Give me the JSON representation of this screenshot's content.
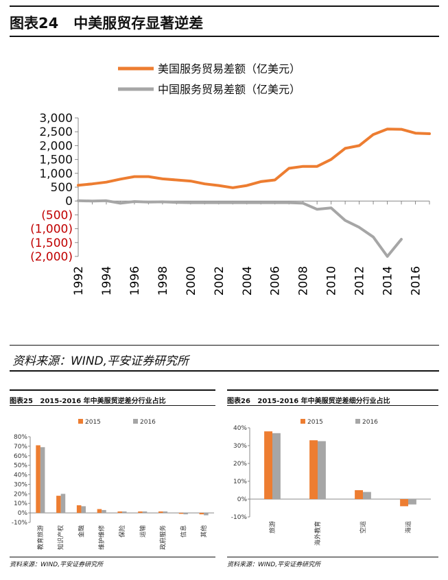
{
  "main": {
    "title_prefix": "图表24",
    "title": "中美服贸存显著逆差",
    "source": "资料来源：WIND,平安证券研究所"
  },
  "fig25": {
    "title_prefix": "图表25",
    "title": "2015-2016 年中美服贸逆差分行业占比",
    "source": "资料来源：WIND,平安证券研究所"
  },
  "fig26": {
    "title_prefix": "图表26",
    "title": "2015-2016 年中美服贸逆差细分行业占比",
    "source": "资料来源：WIND,平安证券研究所"
  },
  "colors": {
    "orange": "#ED7D31",
    "gray": "#A6A6A6",
    "negative": "#C00000"
  },
  "chart_data": [
    {
      "type": "line",
      "legend_position": "top",
      "x": [
        1992,
        1993,
        1994,
        1995,
        1996,
        1997,
        1998,
        1999,
        2000,
        2001,
        2002,
        2003,
        2004,
        2005,
        2006,
        2007,
        2008,
        2009,
        2010,
        2011,
        2012,
        2013,
        2014,
        2015,
        2016,
        2017
      ],
      "series": [
        {
          "name": "美国服务贸易差额（亿美元）",
          "color": "#ED7D31",
          "values": [
            570,
            620,
            680,
            790,
            880,
            880,
            800,
            760,
            720,
            620,
            560,
            480,
            560,
            700,
            760,
            1180,
            1250,
            1250,
            1500,
            1900,
            2000,
            2400,
            2600,
            2590,
            2450,
            2430
          ]
        },
        {
          "name": "中国服务贸易差额（亿美元）",
          "color": "#A6A6A6",
          "values": [
            10,
            0,
            10,
            -80,
            -20,
            -40,
            -30,
            -50,
            -60,
            -60,
            -60,
            -60,
            -60,
            -60,
            -60,
            -60,
            -80,
            -300,
            -250,
            -700,
            -950,
            -1300,
            -2000,
            -1380,
            null,
            null
          ]
        }
      ],
      "ylim": [
        -2000,
        3000
      ],
      "yticks": [
        -2000,
        -1500,
        -1000,
        -500,
        0,
        500,
        1000,
        1500,
        2000,
        2500,
        3000
      ],
      "ytick_labels": [
        "(2,000)",
        "(1,500)",
        "(1,000)",
        "(500)",
        "0",
        "500",
        "1,000",
        "1,500",
        "2,000",
        "2,500",
        "3,000"
      ],
      "xtick_labels": [
        "1992",
        "1994",
        "1996",
        "1998",
        "2000",
        "2002",
        "2004",
        "2006",
        "2008",
        "2010",
        "2012",
        "2014",
        "2016"
      ],
      "grid": false
    },
    {
      "type": "bar",
      "legend_position": "top",
      "categories": [
        "教育旅游",
        "知识产权",
        "金融",
        "维护维修",
        "保险",
        "运输",
        "政府服务",
        "信息",
        "其他"
      ],
      "series": [
        {
          "name": "2015",
          "color": "#ED7D31",
          "values": [
            71,
            18,
            8,
            4,
            1.5,
            1.5,
            1.5,
            -1,
            -1.5
          ]
        },
        {
          "name": "2016",
          "color": "#A6A6A6",
          "values": [
            69,
            20,
            7,
            3,
            1.5,
            1.5,
            1.5,
            -1.5,
            -2.5
          ]
        }
      ],
      "ylim": [
        -10,
        80
      ],
      "ytick_labels": [
        "-10%",
        "0%",
        "10%",
        "20%",
        "30%",
        "40%",
        "50%",
        "60%",
        "70%",
        "80%"
      ]
    },
    {
      "type": "bar",
      "legend_position": "top",
      "categories": [
        "旅游",
        "海外教育",
        "空运",
        "海运"
      ],
      "series": [
        {
          "name": "2015",
          "color": "#ED7D31",
          "values": [
            38,
            33,
            5,
            -4
          ]
        },
        {
          "name": "2016",
          "color": "#A6A6A6",
          "values": [
            37,
            32.5,
            4,
            -3
          ]
        }
      ],
      "ylim": [
        -10,
        40
      ],
      "ytick_labels": [
        "-10%",
        "0%",
        "10%",
        "20%",
        "30%",
        "40%"
      ]
    }
  ]
}
